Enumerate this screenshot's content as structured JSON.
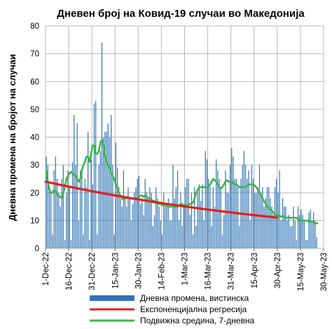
{
  "chart_data": {
    "type": "bar",
    "title": "Дневен број на Ковид-19 случаи во Македонија",
    "xlabel": "",
    "ylabel": "Дневна промена на бројот на случаи",
    "ylim": [
      0,
      80
    ],
    "yticks": [
      0,
      10,
      20,
      30,
      40,
      50,
      60,
      70,
      80
    ],
    "x_start": "2022-12-01",
    "x_end": "2023-05-30",
    "xticks": [
      "1-Dec-22",
      "16-Dec-22",
      "31-Dec-22",
      "15-Jan-23",
      "30-Jan-23",
      "14-Feb-23",
      "1-Mar-23",
      "16-Mar-23",
      "31-Mar-23",
      "15-Apr-23",
      "30-Apr-23",
      "15-May-23",
      "30-May-23"
    ],
    "grid": true,
    "legend_position": "bottom",
    "legend": [
      {
        "label": "Дневна промена, вистинска",
        "color": "#2f75b5",
        "kind": "bar"
      },
      {
        "label": "Експоненцијална регресија",
        "color": "#e0201b",
        "kind": "line"
      },
      {
        "label": "Подвижна средина, 7-дневна",
        "color": "#3cb44b",
        "kind": "line"
      }
    ],
    "series": [
      {
        "name": "Дневна промена, вистинска",
        "kind": "bar",
        "color": "#2f75b5",
        "values": [
          33,
          30,
          22,
          20,
          5,
          28,
          33,
          25,
          20,
          15,
          25,
          30,
          3,
          20,
          28,
          22,
          3,
          31,
          48,
          30,
          45,
          10,
          28,
          28,
          5,
          25,
          22,
          42,
          3,
          32,
          23,
          52,
          53,
          5,
          30,
          35,
          74,
          40,
          42,
          42,
          45,
          40,
          48,
          30,
          5,
          38,
          29,
          22,
          18,
          15,
          28,
          18,
          15,
          22,
          18,
          10,
          16,
          20,
          22,
          25,
          26,
          16,
          18,
          12,
          25,
          20,
          18,
          22,
          20,
          8,
          12,
          22,
          18,
          15,
          10,
          5,
          20,
          16,
          16,
          18,
          10,
          10,
          30,
          18,
          22,
          28,
          10,
          20,
          8,
          15,
          22,
          25,
          25,
          12,
          20,
          5,
          22,
          8,
          20,
          23,
          17,
          23,
          10,
          35,
          32,
          25,
          22,
          8,
          22,
          15,
          32,
          28,
          25,
          22,
          5,
          12,
          28,
          20,
          20,
          30,
          36,
          33,
          25,
          25,
          22,
          8,
          25,
          30,
          35,
          30,
          25,
          28,
          10,
          30,
          25,
          20,
          20,
          22,
          30,
          20,
          22,
          15,
          18,
          22,
          22,
          18,
          15,
          12,
          22,
          25,
          20,
          28,
          10,
          18,
          15,
          15,
          10,
          12,
          8,
          8,
          15,
          10,
          3,
          15,
          12,
          14,
          12,
          10,
          3,
          3,
          13,
          14,
          10,
          13,
          10,
          4
        ]
      },
      {
        "name": "Подвижна средина, 7-дневна",
        "kind": "line",
        "color": "#3cb44b",
        "values": [
          28,
          24,
          21,
          20,
          20,
          21,
          20.5,
          19.5,
          19,
          18.5,
          18,
          20,
          22,
          25,
          26,
          27,
          27.5,
          27,
          26.5,
          26,
          25,
          24,
          25,
          28,
          30,
          31,
          33,
          33,
          31,
          34,
          37,
          37,
          34,
          34,
          35,
          38,
          39,
          37,
          33,
          31,
          30,
          29,
          27,
          26,
          25,
          23,
          22,
          20,
          19,
          18,
          17.5,
          18.5,
          18,
          18,
          18,
          18,
          18,
          18,
          18,
          18,
          18.5,
          19,
          19,
          18.5,
          19,
          18.5,
          18,
          18,
          17.5,
          17,
          17,
          16.5,
          16,
          16,
          16,
          15.5,
          15.5,
          15.5,
          15.5,
          15,
          15,
          15,
          15,
          15,
          15,
          15,
          15.5,
          16,
          16,
          15.5,
          15.5,
          15.5,
          15.5,
          16,
          16,
          16.5,
          18,
          20,
          21,
          22,
          22,
          22,
          22,
          22,
          22,
          22,
          23,
          24,
          25,
          24.5,
          24,
          23,
          22,
          21.5,
          22,
          23,
          24,
          24.5,
          24,
          24,
          24,
          23.5,
          23,
          23,
          22.5,
          22,
          22,
          22,
          22,
          22,
          22.5,
          23,
          23,
          23,
          23,
          22.5,
          22,
          21,
          20,
          19,
          18,
          17,
          16,
          15,
          14.5,
          14,
          13.5,
          13,
          12,
          12,
          12,
          11.5,
          11.5,
          11.5,
          11.5,
          11,
          11,
          11,
          11,
          11,
          11,
          11,
          11,
          10.5,
          10,
          10,
          10,
          10,
          10,
          10,
          9.5,
          9.5,
          9.5,
          9.5,
          9,
          9,
          9
        ]
      },
      {
        "name": "Експоненцијална регресија",
        "kind": "line",
        "color": "#e0201b",
        "x": [
          "2022-12-01",
          "2023-05-01"
        ],
        "values": [
          24,
          11
        ]
      }
    ]
  }
}
